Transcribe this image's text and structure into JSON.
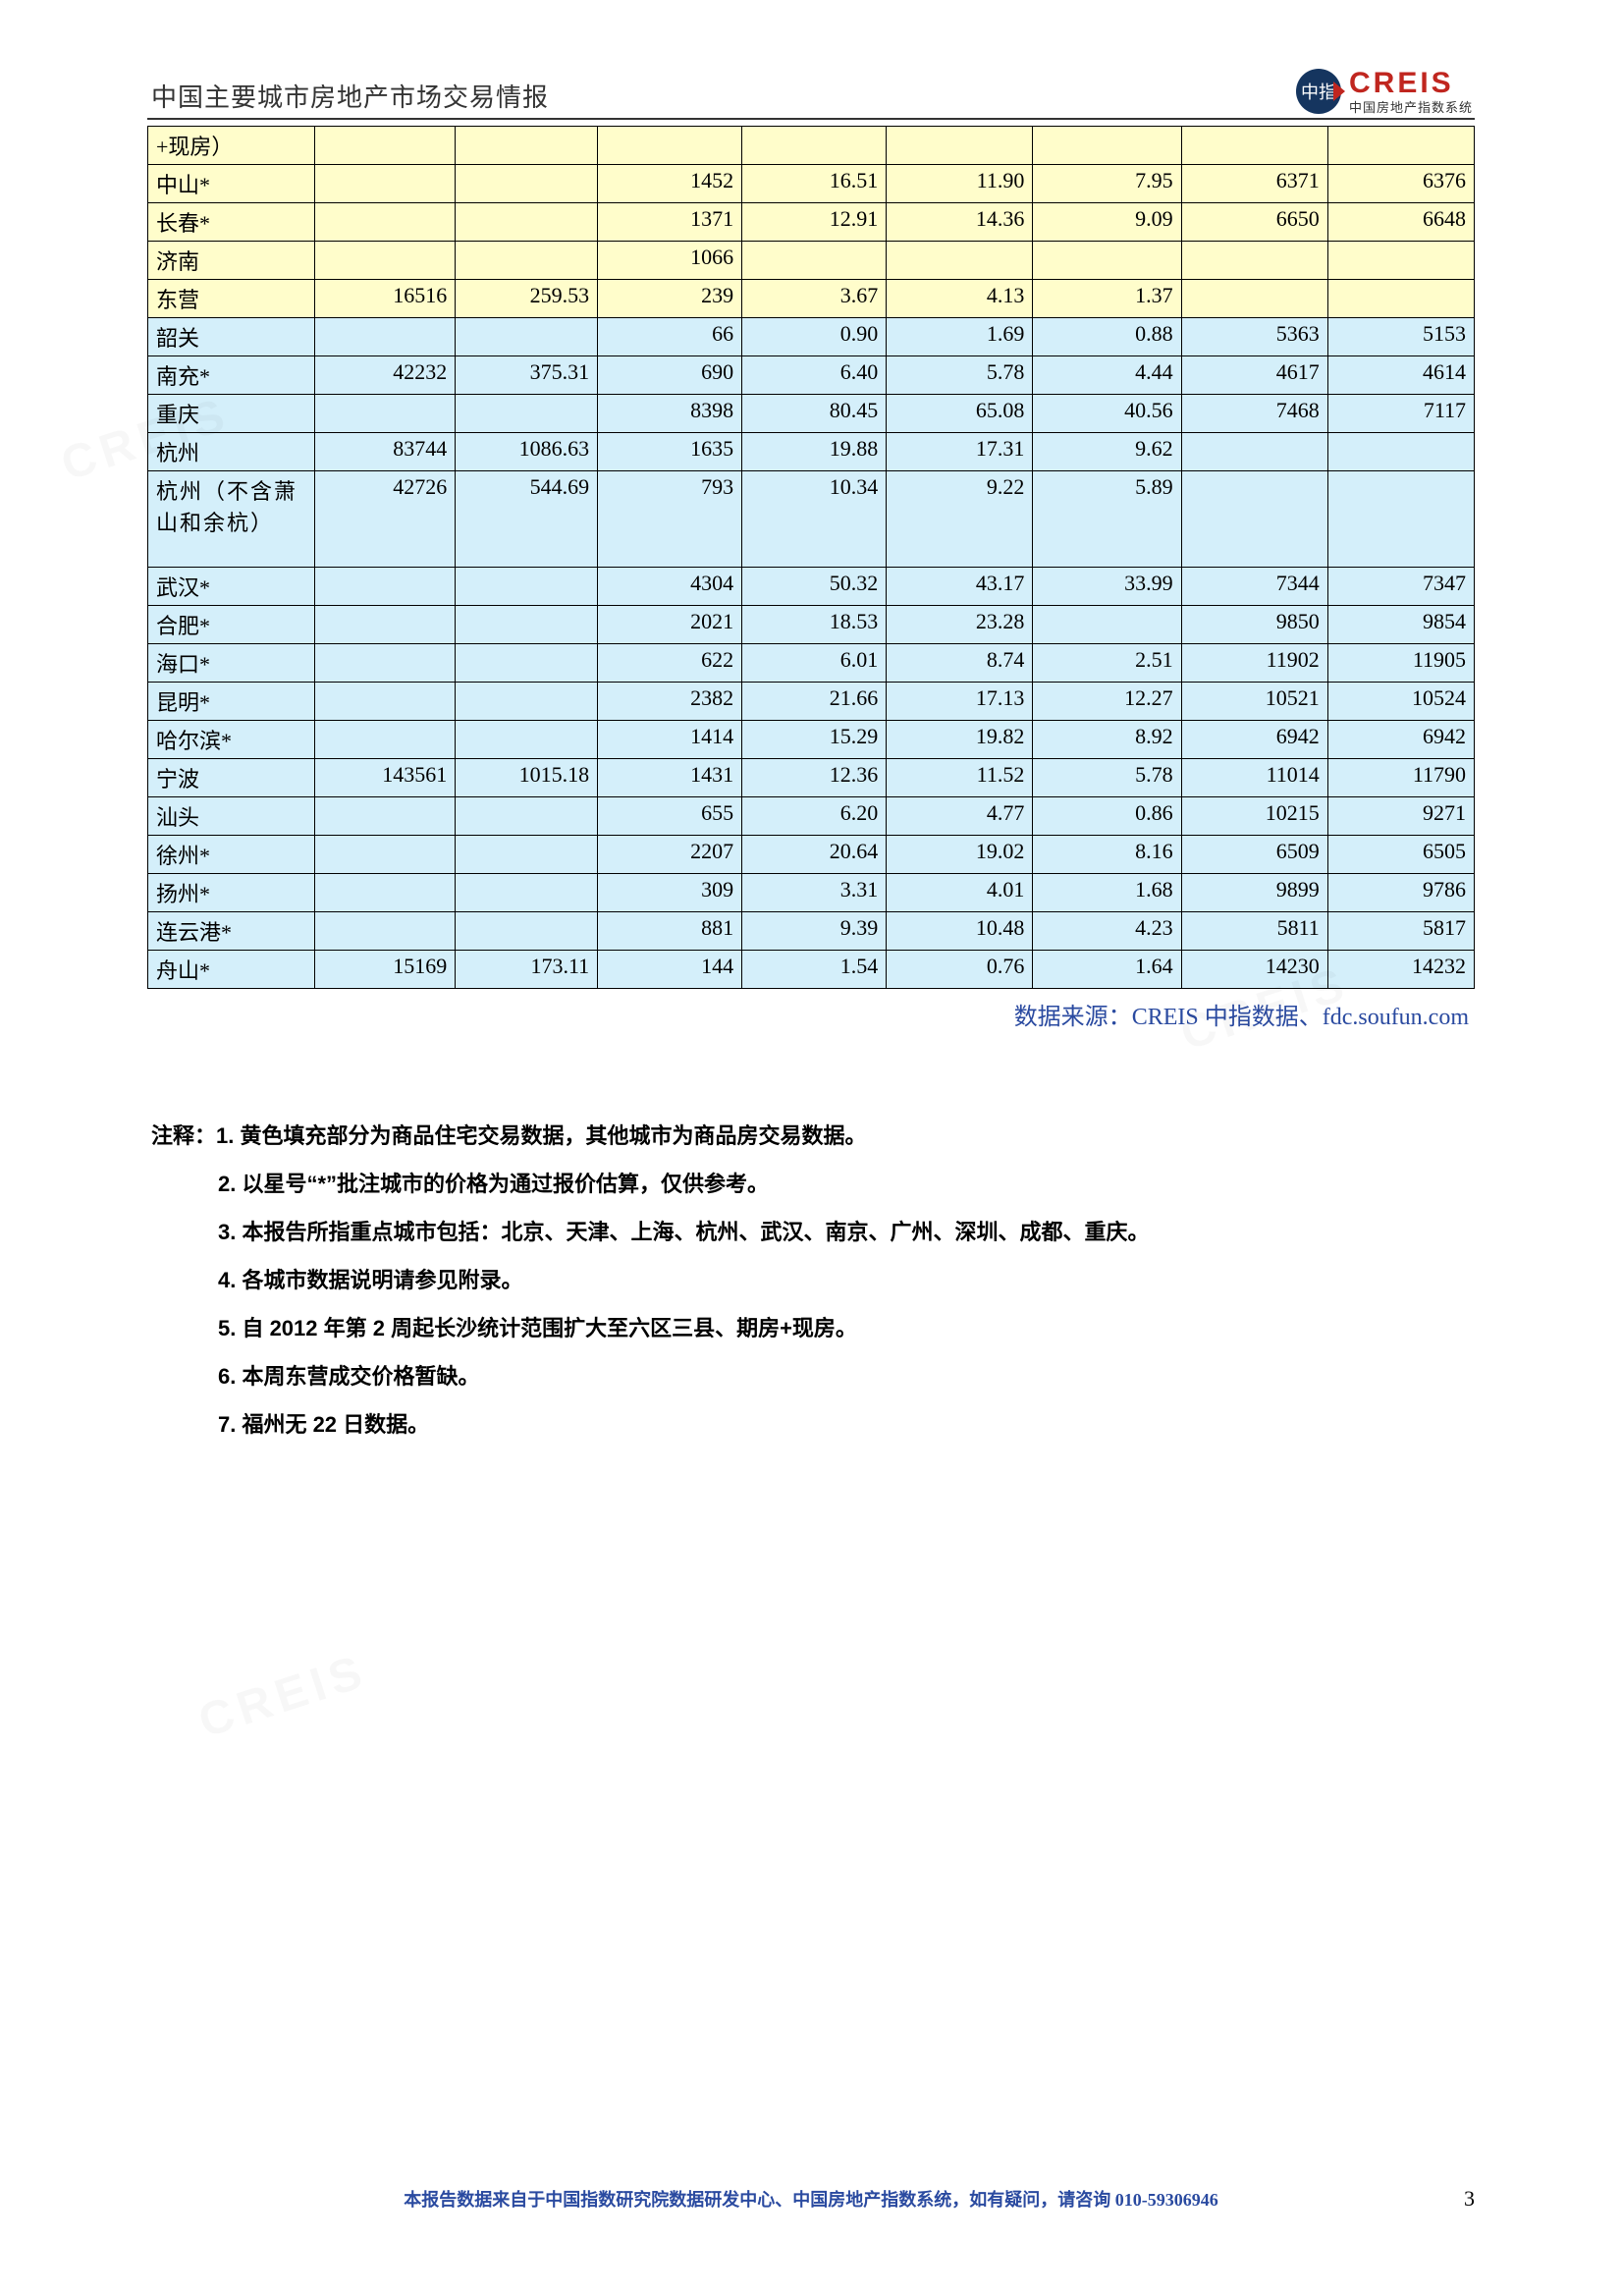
{
  "header": {
    "title": "中国主要城市房地产市场交易情报",
    "logo_main": "CREIS",
    "logo_sub": "中国房地产指数系统",
    "logo_badge": "中指"
  },
  "table": {
    "row_bg_yellow": "#fffdcb",
    "row_bg_blue": "#d4effa",
    "border_color": "#000000",
    "rows": [
      {
        "city": "+现房）",
        "yellow": true,
        "cells": [
          "",
          "",
          "",
          "",
          "",
          "",
          "",
          ""
        ]
      },
      {
        "city": "中山*",
        "yellow": true,
        "cells": [
          "",
          "",
          "1452",
          "16.51",
          "11.90",
          "7.95",
          "6371",
          "6376"
        ]
      },
      {
        "city": "长春*",
        "yellow": true,
        "cells": [
          "",
          "",
          "1371",
          "12.91",
          "14.36",
          "9.09",
          "6650",
          "6648"
        ]
      },
      {
        "city": "济南",
        "yellow": true,
        "cells": [
          "",
          "",
          "1066",
          "",
          "",
          "",
          "",
          ""
        ]
      },
      {
        "city": "东营",
        "yellow": true,
        "cells": [
          "16516",
          "259.53",
          "239",
          "3.67",
          "4.13",
          "1.37",
          "",
          ""
        ]
      },
      {
        "city": "韶关",
        "yellow": false,
        "cells": [
          "",
          "",
          "66",
          "0.90",
          "1.69",
          "0.88",
          "5363",
          "5153"
        ]
      },
      {
        "city": "南充*",
        "yellow": false,
        "cells": [
          "42232",
          "375.31",
          "690",
          "6.40",
          "5.78",
          "4.44",
          "4617",
          "4614"
        ]
      },
      {
        "city": "重庆",
        "yellow": false,
        "cells": [
          "",
          "",
          "8398",
          "80.45",
          "65.08",
          "40.56",
          "7468",
          "7117"
        ]
      },
      {
        "city": "杭州",
        "yellow": false,
        "cells": [
          "83744",
          "1086.63",
          "1635",
          "19.88",
          "17.31",
          "9.62",
          "",
          ""
        ]
      },
      {
        "city": "杭州（不含萧山和余杭）",
        "yellow": false,
        "tall": true,
        "cells": [
          "42726",
          "544.69",
          "793",
          "10.34",
          "9.22",
          "5.89",
          "",
          ""
        ]
      },
      {
        "city": "武汉*",
        "yellow": false,
        "cells": [
          "",
          "",
          "4304",
          "50.32",
          "43.17",
          "33.99",
          "7344",
          "7347"
        ]
      },
      {
        "city": "合肥*",
        "yellow": false,
        "cells": [
          "",
          "",
          "2021",
          "18.53",
          "23.28",
          "",
          "9850",
          "9854"
        ]
      },
      {
        "city": "海口*",
        "yellow": false,
        "cells": [
          "",
          "",
          "622",
          "6.01",
          "8.74",
          "2.51",
          "11902",
          "11905"
        ]
      },
      {
        "city": "昆明*",
        "yellow": false,
        "cells": [
          "",
          "",
          "2382",
          "21.66",
          "17.13",
          "12.27",
          "10521",
          "10524"
        ]
      },
      {
        "city": "哈尔滨*",
        "yellow": false,
        "cells": [
          "",
          "",
          "1414",
          "15.29",
          "19.82",
          "8.92",
          "6942",
          "6942"
        ]
      },
      {
        "city": "宁波",
        "yellow": false,
        "cells": [
          "143561",
          "1015.18",
          "1431",
          "12.36",
          "11.52",
          "5.78",
          "11014",
          "11790"
        ]
      },
      {
        "city": "汕头",
        "yellow": false,
        "cells": [
          "",
          "",
          "655",
          "6.20",
          "4.77",
          "0.86",
          "10215",
          "9271"
        ]
      },
      {
        "city": "徐州*",
        "yellow": false,
        "cells": [
          "",
          "",
          "2207",
          "20.64",
          "19.02",
          "8.16",
          "6509",
          "6505"
        ]
      },
      {
        "city": "扬州*",
        "yellow": false,
        "cells": [
          "",
          "",
          "309",
          "3.31",
          "4.01",
          "1.68",
          "9899",
          "9786"
        ]
      },
      {
        "city": "连云港*",
        "yellow": false,
        "cells": [
          "",
          "",
          "881",
          "9.39",
          "10.48",
          "4.23",
          "5811",
          "5817"
        ]
      },
      {
        "city": "舟山*",
        "yellow": false,
        "cells": [
          "15169",
          "173.11",
          "144",
          "1.54",
          "0.76",
          "1.64",
          "14230",
          "14232"
        ]
      }
    ]
  },
  "source": {
    "label": "数据来源：",
    "credit_cn": "CREIS 中指数据、",
    "credit_url": "fdc.soufun.com"
  },
  "notes": {
    "lead": "注释：",
    "items": [
      "1. 黄色填充部分为商品住宅交易数据，其他城市为商品房交易数据。",
      "2. 以星号“*”批注城市的价格为通过报价估算，仅供参考。",
      "3. 本报告所指重点城市包括：北京、天津、上海、杭州、武汉、南京、广州、深圳、成都、重庆。",
      "4. 各城市数据说明请参见附录。",
      "5. 自 2012 年第 2 周起长沙统计范围扩大至六区三县、期房+现房。",
      "6. 本周东营成交价格暂缺。",
      "7. 福州无 22 日数据。"
    ]
  },
  "footer": {
    "text": "本报告数据来自于中国指数研究院数据研发中心、中国房地产指数系统，如有疑问，请咨询 010-59306946",
    "page_number": "3"
  },
  "watermark_text": "CREIS",
  "colors": {
    "brand_red": "#c0261f",
    "brand_navy": "#15355f",
    "link_blue": "#2a4aa0"
  }
}
